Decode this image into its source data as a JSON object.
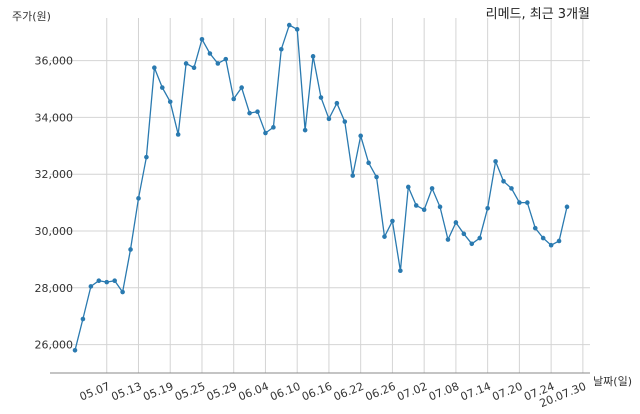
{
  "chart_data": {
    "type": "line",
    "title": "리메드, 최근 3개월",
    "ylabel": "주가(원)",
    "xlabel": "날짜(일)",
    "ylim": [
      25000,
      37500
    ],
    "yticks": [
      26000,
      28000,
      30000,
      32000,
      34000,
      36000
    ],
    "ytick_labels": [
      "26,000",
      "28,000",
      "30,000",
      "32,000",
      "34,000",
      "36,000"
    ],
    "xtick_labels": [
      "05.07",
      "05.13",
      "05.19",
      "05.25",
      "05.29",
      "06.04",
      "06.10",
      "06.16",
      "06.22",
      "06.26",
      "07.02",
      "07.08",
      "07.14",
      "07.20",
      "07.24",
      "20.07.30"
    ],
    "xtick_index": [
      4,
      8,
      12,
      16,
      20,
      24,
      28,
      32,
      36,
      40,
      44,
      48,
      52,
      56,
      60,
      64
    ],
    "grid": true,
    "line_color": "#2a7ab0",
    "series": [
      {
        "name": "",
        "values": [
          25800,
          26900,
          28050,
          28250,
          28200,
          28250,
          27850,
          29350,
          31150,
          32600,
          35750,
          35050,
          34550,
          33400,
          35900,
          35750,
          36750,
          36250,
          35900,
          36050,
          34650,
          35050,
          34150,
          34200,
          33450,
          33650,
          36400,
          37250,
          37100,
          33550,
          36150,
          34700,
          33950,
          34500,
          33850,
          31950,
          33350,
          32400,
          31900,
          29800,
          30350,
          28600,
          31550,
          30900,
          30750,
          31500,
          30850,
          29700,
          30300,
          29900,
          29550,
          29750,
          30800,
          32450,
          31750,
          31500,
          31000,
          31000,
          30100,
          29750,
          29500,
          29650,
          30850
        ]
      }
    ]
  }
}
